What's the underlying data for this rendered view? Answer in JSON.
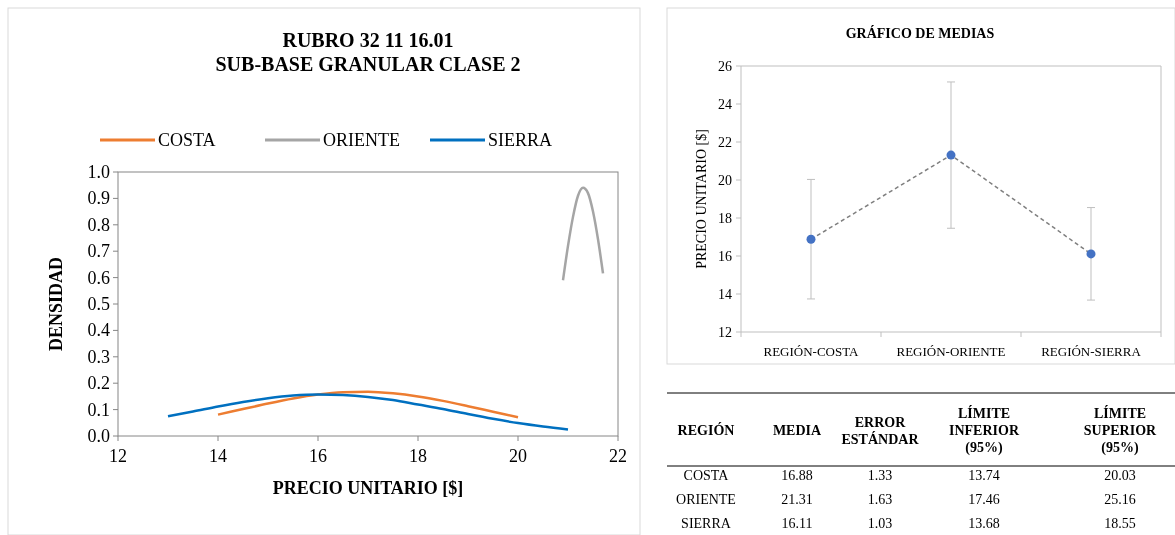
{
  "chart_data": [
    {
      "type": "line",
      "title": "RUBRO 32 11 16.01\nSUB-BASE GRANULAR CLASE 2",
      "xlabel": "PRECIO UNITARIO [$]",
      "ylabel": "DENSIDAD",
      "xlim": [
        12,
        22
      ],
      "xticks": [
        12,
        14,
        16,
        18,
        20,
        22
      ],
      "ylim": [
        0,
        1
      ],
      "yticks": [
        {
          "value": 0,
          "label": "0.0"
        },
        {
          "value": 0.1,
          "label": "0.1"
        },
        {
          "value": 0.2,
          "label": "0.2"
        },
        {
          "value": 0.3,
          "label": "0.3"
        },
        {
          "value": 0.4,
          "label": "0.4"
        },
        {
          "value": 0.5,
          "label": "0.5"
        },
        {
          "value": 0.6,
          "label": "0.6"
        },
        {
          "value": 0.7,
          "label": "0.7"
        },
        {
          "value": 0.8,
          "label": "0.8"
        },
        {
          "value": 0.9,
          "label": "0.9"
        },
        {
          "value": 1,
          "label": "1.0"
        }
      ],
      "legend": "top",
      "marker": "none",
      "line_style": "solid",
      "series": [
        {
          "name": "COSTA",
          "color": "#ed7d31",
          "x": [
            14,
            14.5,
            15,
            15.5,
            16,
            16.5,
            17,
            17.5,
            18,
            18.5,
            19,
            19.5,
            20
          ],
          "values": [
            0.081,
            0.102,
            0.123,
            0.142,
            0.157,
            0.166,
            0.168,
            0.162,
            0.15,
            0.133,
            0.113,
            0.092,
            0.071
          ]
        },
        {
          "name": "ORIENTE",
          "color": "#a5a5a5",
          "x": [
            20.9,
            21.0,
            21.1,
            21.2,
            21.3,
            21.4,
            21.5,
            21.6,
            21.7
          ],
          "values": [
            0.59,
            0.72,
            0.83,
            0.91,
            0.94,
            0.92,
            0.85,
            0.745,
            0.616
          ]
        },
        {
          "name": "SIERRA",
          "color": "#0070c0",
          "x": [
            13,
            13.5,
            14,
            14.5,
            15,
            15.5,
            16,
            16.5,
            17,
            17.5,
            18,
            18.5,
            19,
            19.5,
            20,
            20.5,
            21
          ],
          "values": [
            0.075,
            0.093,
            0.112,
            0.129,
            0.143,
            0.153,
            0.157,
            0.155,
            0.148,
            0.136,
            0.119,
            0.102,
            0.083,
            0.065,
            0.049,
            0.036,
            0.025
          ]
        }
      ]
    },
    {
      "type": "line",
      "title": "GRÁFICO DE MEDIAS",
      "ylabel": "PRECIO UNITARIO [$]",
      "categories": [
        "REGIÓN-COSTA",
        "REGIÓN-ORIENTE",
        "REGIÓN-SIERRA"
      ],
      "ylim": [
        12,
        26
      ],
      "yticks": [
        12,
        14,
        16,
        18,
        20,
        22,
        24,
        26
      ],
      "marker": "circle",
      "line_style": "dashed",
      "series": [
        {
          "color": "#4472c4",
          "values": [
            16.88,
            21.31,
            16.11
          ],
          "errors": [
            [
              13.74,
              20.03
            ],
            [
              17.46,
              25.16
            ],
            [
              13.68,
              18.55
            ]
          ]
        }
      ]
    },
    {
      "type": "other",
      "categories": [
        "REGIÓN",
        "MEDIA",
        "ERROR\nESTÁNDAR",
        "LÍMITE\nINFERIOR\n(95%)",
        "LÍMITE\nSUPERIOR\n(95%)"
      ],
      "y_categories": [
        "COSTA",
        "ORIENTE",
        "SIERRA"
      ],
      "cell_labels": [
        [
          "16.88",
          "1.33",
          "13.74",
          "20.03"
        ],
        [
          "21.31",
          "1.63",
          "17.46",
          "25.16"
        ],
        [
          "16.11",
          "1.03",
          "13.68",
          "18.55"
        ]
      ]
    }
  ]
}
